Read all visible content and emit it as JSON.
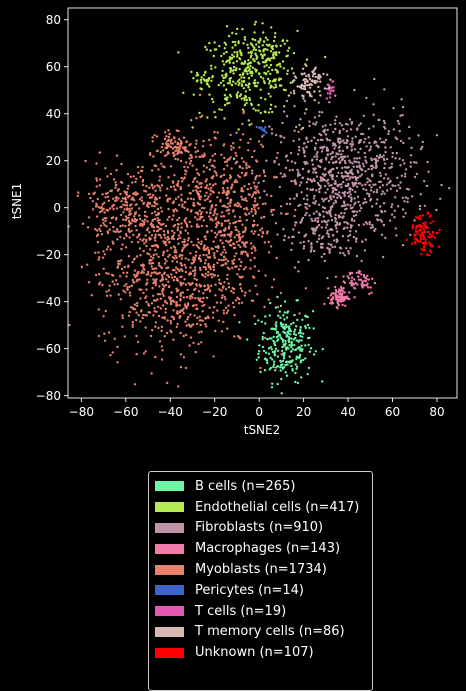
{
  "chart_data": {
    "type": "scatter",
    "xlabel": "tSNE2",
    "ylabel": "tSNE1",
    "xlim": [
      -86,
      89
    ],
    "ylim": [
      -81,
      85
    ],
    "xticks": [
      -80,
      -60,
      -40,
      -20,
      0,
      20,
      40,
      60,
      80
    ],
    "yticks": [
      -80,
      -60,
      -40,
      -20,
      0,
      20,
      40,
      60,
      80
    ],
    "xtick_labels": [
      "−80",
      "−60",
      "−40",
      "−20",
      "0",
      "20",
      "40",
      "60",
      "80"
    ],
    "ytick_labels": [
      "−80",
      "−60",
      "−40",
      "−20",
      "0",
      "20",
      "40",
      "60",
      "80"
    ],
    "grid": false,
    "legend_position": "bottom-center, below plot",
    "series": [
      {
        "name": "B cells (n=265)",
        "color": "#6ef5a5",
        "n": 265,
        "clusters": [
          {
            "cx": 12,
            "cy": -58,
            "sx": 6,
            "sy": 8,
            "w": 1
          }
        ]
      },
      {
        "name": "Endothelial cells (n=417)",
        "color": "#b5eb50",
        "n": 417,
        "clusters": [
          {
            "cx": -5,
            "cy": 57,
            "sx": 11,
            "sy": 9,
            "w": 0.85
          },
          {
            "cx": 5,
            "cy": 68,
            "sx": 5,
            "sy": 3.5,
            "w": 0.1
          },
          {
            "cx": -24,
            "cy": 54,
            "sx": 2,
            "sy": 2,
            "w": 0.05
          }
        ]
      },
      {
        "name": "Fibroblasts (n=910)",
        "color": "#c194aa",
        "n": 910,
        "clusters": [
          {
            "cx": 38,
            "cy": 14,
            "sx": 16,
            "sy": 14,
            "w": 0.88
          },
          {
            "cx": 28,
            "cy": -12,
            "sx": 7,
            "sy": 6,
            "w": 0.12
          }
        ]
      },
      {
        "name": "Macrophages (n=143)",
        "color": "#f07aaa",
        "n": 143,
        "clusters": [
          {
            "cx": 36,
            "cy": -38,
            "sx": 2,
            "sy": 2,
            "w": 0.6
          },
          {
            "cx": 45,
            "cy": -31,
            "sx": 4,
            "sy": 3,
            "w": 0.4
          }
        ]
      },
      {
        "name": "Myoblasts (n=1734)",
        "color": "#e8806c",
        "n": 1734,
        "clusters": [
          {
            "cx": -38,
            "cy": -30,
            "sx": 17,
            "sy": 15,
            "w": 0.45
          },
          {
            "cx": -60,
            "cy": 0,
            "sx": 9,
            "sy": 9,
            "w": 0.15
          },
          {
            "cx": -20,
            "cy": 5,
            "sx": 16,
            "sy": 13,
            "w": 0.3
          },
          {
            "cx": -38,
            "cy": 26,
            "sx": 4,
            "sy": 3,
            "w": 0.05
          },
          {
            "cx": -10,
            "cy": -15,
            "sx": 6,
            "sy": 6,
            "w": 0.05
          }
        ]
      },
      {
        "name": "Pericytes (n=14)",
        "color": "#3e63c9",
        "n": 14,
        "clusters": [
          {
            "cx": 1,
            "cy": 33,
            "sx": 1,
            "sy": 1,
            "w": 1
          }
        ]
      },
      {
        "name": "T cells (n=19)",
        "color": "#e358b2",
        "n": 19,
        "clusters": [
          {
            "cx": 32,
            "cy": 50,
            "sx": 0.8,
            "sy": 2,
            "w": 1
          }
        ]
      },
      {
        "name": "T memory cells (n=86)",
        "color": "#d9b8b4",
        "n": 86,
        "clusters": [
          {
            "cx": 23,
            "cy": 53,
            "sx": 3.5,
            "sy": 3,
            "w": 1
          }
        ]
      },
      {
        "name": "Unknown (n=107)",
        "color": "#ff0000",
        "n": 107,
        "clusters": [
          {
            "cx": 74,
            "cy": -11,
            "sx": 3,
            "sy": 4,
            "w": 1
          }
        ]
      }
    ]
  }
}
